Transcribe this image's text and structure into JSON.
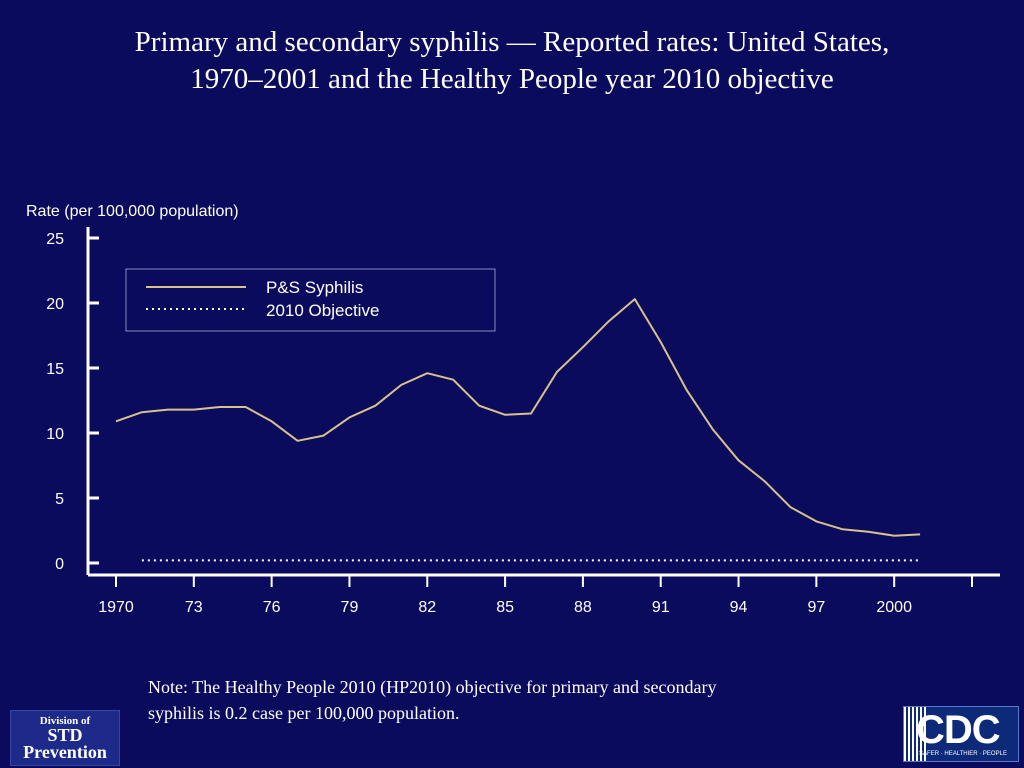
{
  "title": {
    "line1": "Primary and secondary syphilis — Reported rates: United States,",
    "line2": "1970–2001 and the Healthy People year 2010 objective"
  },
  "colors": {
    "background": "#0b0b5e",
    "axis": "#ffffff",
    "series": "#d8c28a",
    "objective": "#ffffff"
  },
  "chart_data": {
    "type": "line",
    "ylabel": "Rate (per 100,000 population)",
    "xlabel": "",
    "ylim": [
      0,
      25
    ],
    "yticks": [
      0,
      5,
      10,
      15,
      20,
      25
    ],
    "xlim": [
      1970,
      2003
    ],
    "xticks": [
      1970,
      1973,
      1976,
      1979,
      1982,
      1985,
      1988,
      1991,
      1994,
      1997,
      2000,
      2003
    ],
    "xtick_labels": [
      "1970",
      "73",
      "76",
      "79",
      "82",
      "85",
      "88",
      "91",
      "94",
      "97",
      "2000",
      ""
    ],
    "grid": false,
    "legend_position": "top-left",
    "series": [
      {
        "name": "P&S Syphilis",
        "style": "solid",
        "x": [
          1970,
          1971,
          1972,
          1973,
          1974,
          1975,
          1976,
          1977,
          1978,
          1979,
          1980,
          1981,
          1982,
          1983,
          1984,
          1985,
          1986,
          1987,
          1988,
          1989,
          1990,
          1991,
          1992,
          1993,
          1994,
          1995,
          1996,
          1997,
          1998,
          1999,
          2000,
          2001
        ],
        "values": [
          10.9,
          11.6,
          11.8,
          11.8,
          12.0,
          12.0,
          10.9,
          9.4,
          9.8,
          11.2,
          12.1,
          13.7,
          14.6,
          14.1,
          12.1,
          11.4,
          11.5,
          14.7,
          16.6,
          18.6,
          20.3,
          17.0,
          13.3,
          10.3,
          7.9,
          6.3,
          4.3,
          3.2,
          2.6,
          2.4,
          2.1,
          2.2
        ]
      },
      {
        "name": "2010 Objective",
        "style": "dotted",
        "x": [
          1971,
          2001
        ],
        "values": [
          0.2,
          0.2
        ]
      }
    ]
  },
  "note": {
    "line1": "Note: The Healthy People 2010 (HP2010) objective for primary and secondary",
    "line2": "syphilis is 0.2 case per 100,000 population."
  },
  "logos": {
    "std_line1": "Division of",
    "std_line2": "STD",
    "std_line3": "Prevention",
    "cdc_mark": "CDC",
    "cdc_tagline": "SAFER · HEALTHIER · PEOPLE"
  }
}
